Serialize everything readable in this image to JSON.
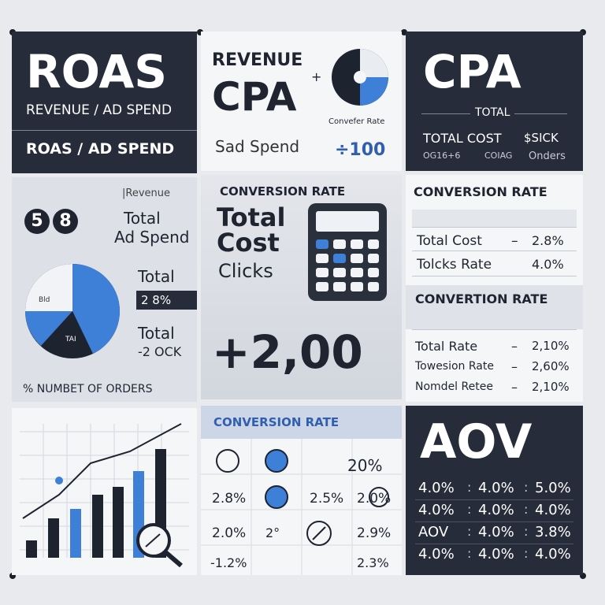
{
  "roas": {
    "title": "ROAS",
    "formula": "REVENUE / AD SPEND",
    "subtitle": "ROAS / AD SPEND"
  },
  "cpa_formula": {
    "top": "REVENUE",
    "plus": "+",
    "title": "CPA",
    "icon_label": "Convefer Rate",
    "spend": "Sad Spend",
    "amount": "÷100"
  },
  "cpa": {
    "title": "CPA",
    "total": "TOTAL",
    "row_1": [
      "TOTAL COST",
      "$SICK"
    ],
    "row_2": [
      "OG16+6",
      "COIAG",
      "Onders"
    ]
  },
  "roas_detail": {
    "header": "|Revenue",
    "digits": [
      "5",
      "8"
    ],
    "total_1": "Total",
    "ad_spend": "Ad Spend",
    "total_2": "Total",
    "percent": "2 8%",
    "total_3": "Total",
    "amount": "-2 OCK",
    "pie_labels": [
      "Bld",
      "TAI"
    ],
    "footer": "% NUMBET OF ORDERS"
  },
  "calculator_panel": {
    "title": "CONVERSION RATE",
    "lines": [
      "Total",
      "Cost",
      "Clicks"
    ],
    "amount": "+2,00"
  },
  "conversion_tables": [
    {
      "title": "CONVERSION RATE",
      "rows": [
        [
          "Total Cost",
          "–",
          "2.8%"
        ],
        [
          "Tolcks Rate",
          "4.0%"
        ]
      ]
    },
    {
      "title": "CONVERTION RATE",
      "rows": [
        [
          "Total Rate",
          "–",
          "2,10%"
        ],
        [
          "Towesion Rate",
          "–",
          "2,60%"
        ],
        [
          "Nomdel Retee",
          "–",
          "2,10%"
        ]
      ]
    }
  ],
  "conversion_grid": {
    "title": "CONVERSION RATE",
    "cells": [
      "20%",
      "2.8%",
      "2.5%",
      "2.0%",
      "2.0%",
      "2°",
      "2.9%",
      "-1.2%",
      "2.3%"
    ]
  },
  "aov": {
    "title": "AOV",
    "separator": ":",
    "rows": [
      [
        "4.0%",
        "4.0%",
        "5.0%"
      ],
      [
        "4.0%",
        "4.0%",
        "4.0%"
      ],
      [
        "AOV",
        "4.0%",
        "3.8%"
      ],
      [
        "4.0%",
        "4.0%",
        "4.0%"
      ]
    ]
  }
}
